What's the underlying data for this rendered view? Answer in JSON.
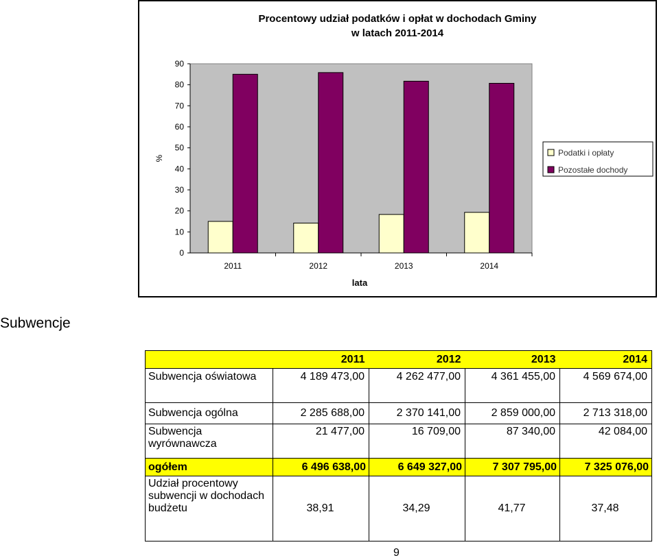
{
  "chart_data": {
    "type": "bar",
    "title": "Procentowy udział podatków i opłat w dochodach Gminy",
    "subtitle": "w latach 2011-2014",
    "xlabel": "lata",
    "ylabel": "%",
    "categories": [
      "2011",
      "2012",
      "2013",
      "2014"
    ],
    "ylim": [
      0,
      90
    ],
    "yticks": [
      "0",
      "10",
      "20",
      "30",
      "40",
      "50",
      "60",
      "70",
      "80",
      "90"
    ],
    "grid": false,
    "legend_position": "right",
    "series": [
      {
        "name": "Podatki i opłaty",
        "values": [
          15,
          14.2,
          18.3,
          19.3
        ],
        "color": "#ffffcc"
      },
      {
        "name": "Pozostałe dochody",
        "values": [
          85,
          85.8,
          81.7,
          80.7
        ],
        "color": "#800060"
      }
    ],
    "plot_background": "#c0c0c0"
  },
  "section_heading": "Subwencje",
  "table": {
    "header": [
      "",
      "2011",
      "2012",
      "2013",
      "2014"
    ],
    "rows": [
      {
        "label": "Subwencja oświatowa",
        "values": [
          "4 189 473,00",
          "4 262 477,00",
          "4 361 455,00",
          "4 569 674,00"
        ]
      },
      {
        "label": "Subwencja ogólna",
        "values": [
          "2 285 688,00",
          "2 370 141,00",
          "2 859 000,00",
          "2 713 318,00"
        ]
      },
      {
        "label": "Subwencja wyrównawcza",
        "values": [
          "21 477,00",
          "16 709,00",
          "87 340,00",
          "42 084,00"
        ]
      },
      {
        "label": "ogółem",
        "values": [
          "6 496 638,00",
          "6 649 327,00",
          "7 307 795,00",
          "7 325 076,00"
        ]
      },
      {
        "label": "Udział procentowy subwencji w dochodach budżetu",
        "values": [
          "38,91",
          "34,29",
          "41,77",
          "37,48"
        ]
      }
    ],
    "highlight_color": "#ffff00"
  },
  "page_number": "9"
}
